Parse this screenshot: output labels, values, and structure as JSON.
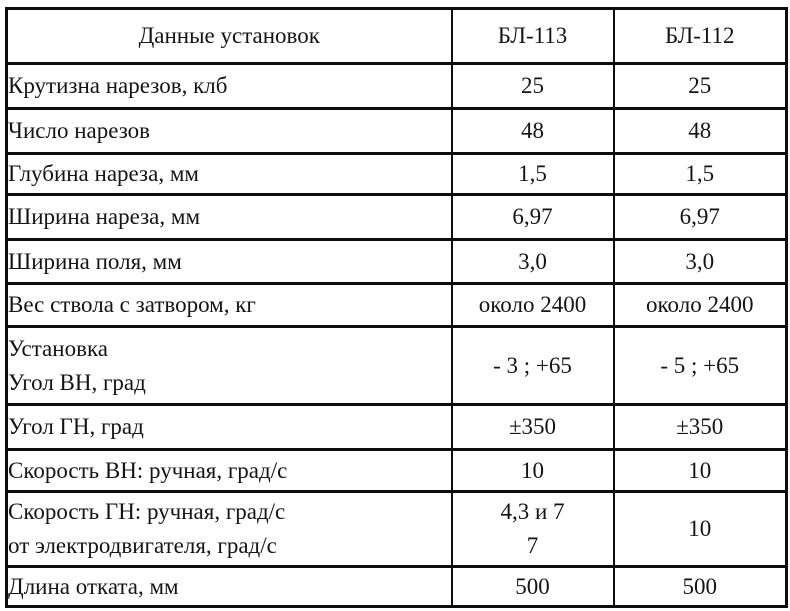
{
  "table": {
    "header": {
      "label_col": "Данные установок",
      "col_bl113": "БЛ-113",
      "col_bl112": "БЛ-112"
    },
    "rows": [
      {
        "label": "Крутизна нарезов, клб",
        "bl113": "25",
        "bl112": "25"
      },
      {
        "label": "Число нарезов",
        "bl113": "48",
        "bl112": "48"
      },
      {
        "label": "Глубина нареза, мм",
        "bl113": "1,5",
        "bl112": "1,5"
      },
      {
        "label": "Ширина нареза, мм",
        "bl113": "6,97",
        "bl112": "6,97"
      },
      {
        "label": "Ширина поля, мм",
        "bl113": "3,0",
        "bl112": "3,0"
      },
      {
        "label": "Вес ствола с затвором, кг",
        "bl113": "около 2400",
        "bl112": "около 2400"
      },
      {
        "label_line1": "Установка",
        "label_line2": "Угол ВН, град",
        "bl113": "- 3 ; +65",
        "bl112": "- 5 ; +65"
      },
      {
        "label": "Угол ГН, град",
        "bl113": "±350",
        "bl112": "±350"
      },
      {
        "label": "Скорость ВН: ручная, град/с",
        "bl113": "10",
        "bl112": "10"
      },
      {
        "label_line1": "Скорость ГН: ручная, град/с",
        "label_line2": "от электродвигателя, град/с",
        "bl113_line1": "4,3 и 7",
        "bl113_line2": "7",
        "bl112": "10"
      },
      {
        "label": "Длина отката, мм",
        "bl113": "500",
        "bl112": "500"
      }
    ]
  }
}
